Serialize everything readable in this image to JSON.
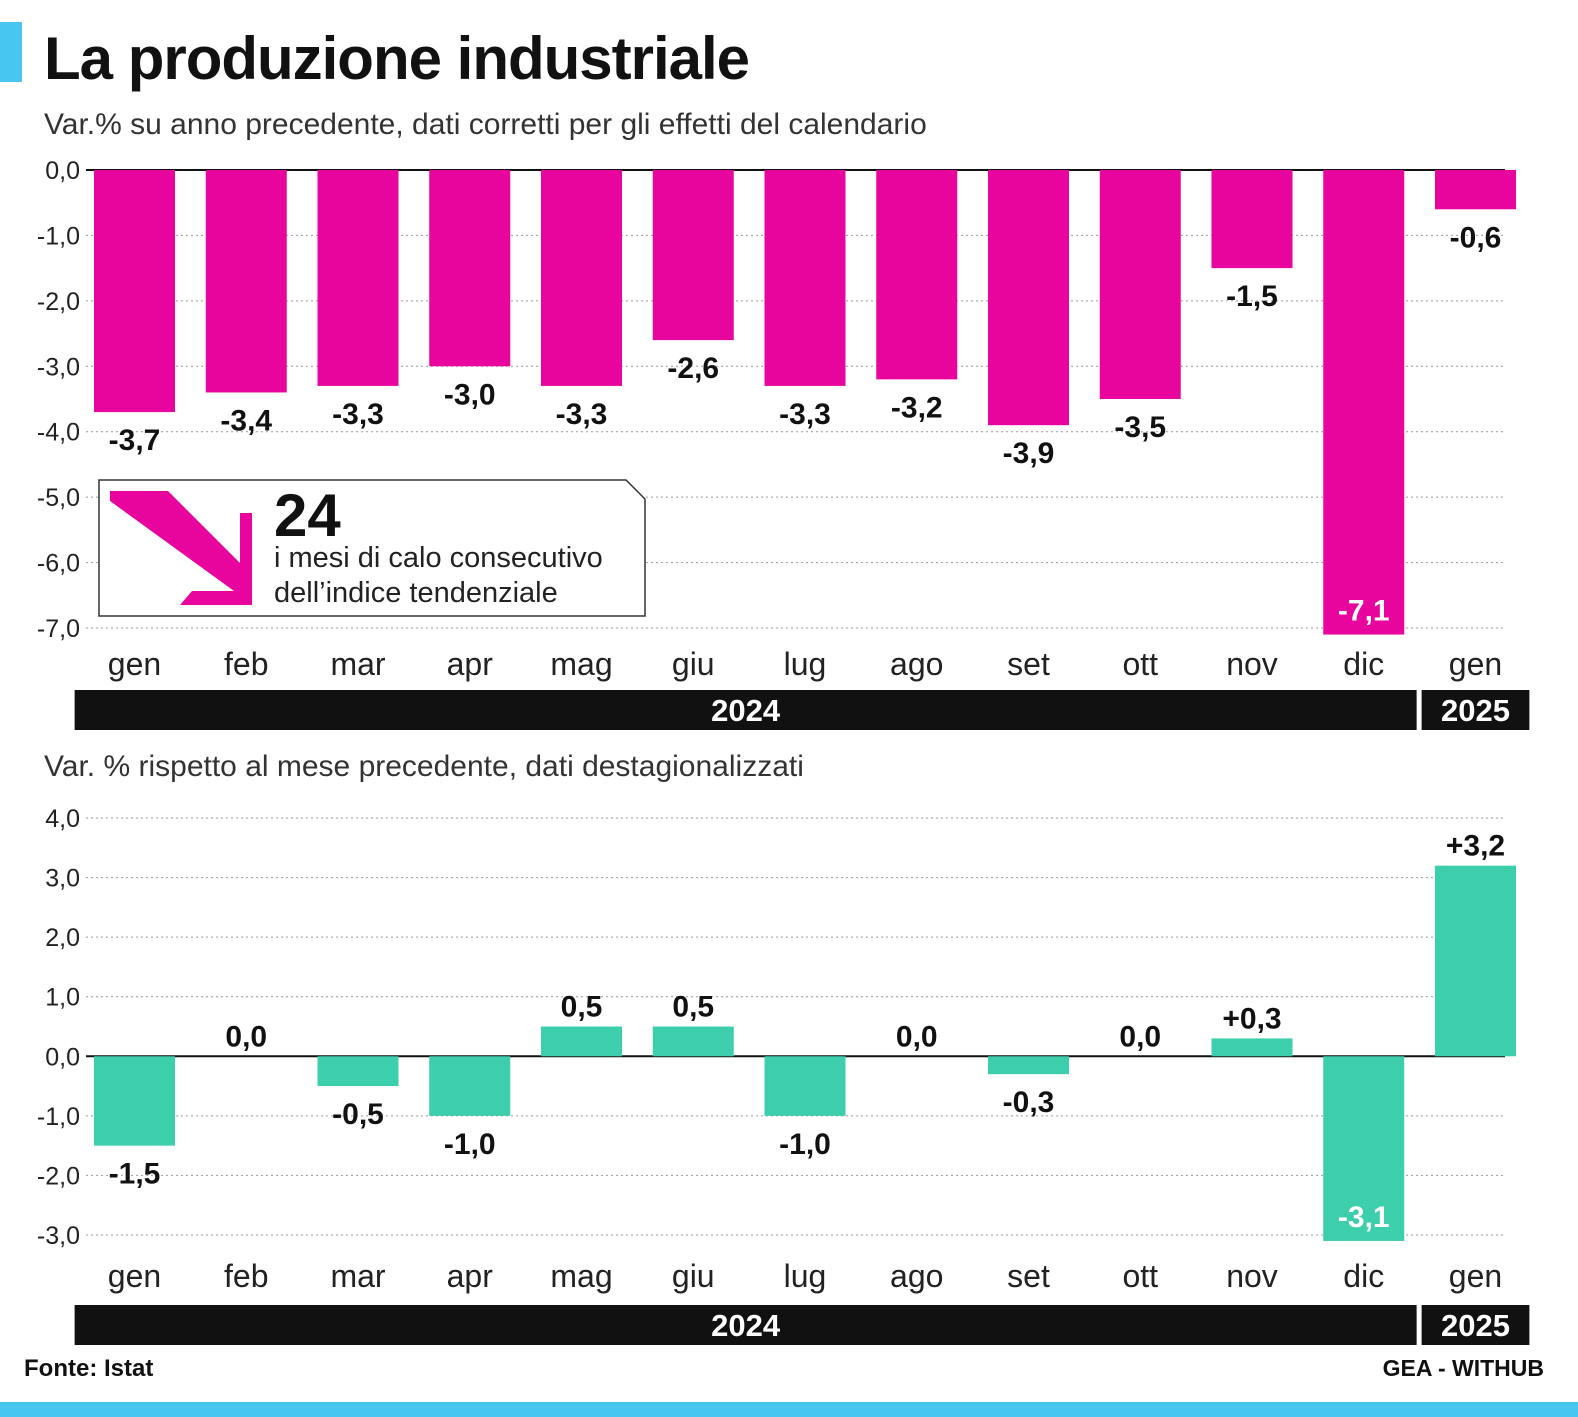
{
  "title": "La produzione industriale",
  "callout": {
    "number": "24",
    "text": "i mesi di calo consecutivo dell’indice tendenziale"
  },
  "source": "Fonte: Istat",
  "credit": "GEA - WITHUB",
  "colors": {
    "magenta": "#e8059e",
    "teal": "#3dcfac",
    "accent": "#47c6ef",
    "band": "#111111"
  },
  "chart_data": [
    {
      "type": "bar",
      "title": "Var.% su anno precedente, dati corretti per gli effetti del calendario",
      "categories": [
        "gen",
        "feb",
        "mar",
        "apr",
        "mag",
        "giu",
        "lug",
        "ago",
        "set",
        "ott",
        "nov",
        "dic",
        "gen"
      ],
      "year_groups": [
        {
          "label": "2024",
          "from": 0,
          "to": 11
        },
        {
          "label": "2025",
          "from": 12,
          "to": 12
        }
      ],
      "values": [
        -3.7,
        -3.4,
        -3.3,
        -3.0,
        -3.3,
        -2.6,
        -3.3,
        -3.2,
        -3.9,
        -3.5,
        -1.5,
        -7.1,
        -0.6
      ],
      "labels": [
        "-3,7",
        "-3,4",
        "-3,3",
        "-3,0",
        "-3,3",
        "-2,6",
        "-3,3",
        "-3,2",
        "-3,9",
        "-3,5",
        "-1,5",
        "-7,1",
        "-0,6"
      ],
      "ylim": [
        -7.0,
        0.0
      ],
      "yticks": [
        "0,0",
        "-1,0",
        "-2,0",
        "-3,0",
        "-4,0",
        "-5,0",
        "-6,0",
        "-7,0"
      ],
      "grid": true,
      "color": "#e8059e"
    },
    {
      "type": "bar",
      "title": "Var. % rispetto al mese precedente, dati destagionalizzati",
      "categories": [
        "gen",
        "feb",
        "mar",
        "apr",
        "mag",
        "giu",
        "lug",
        "ago",
        "set",
        "ott",
        "nov",
        "dic",
        "gen"
      ],
      "year_groups": [
        {
          "label": "2024",
          "from": 0,
          "to": 11
        },
        {
          "label": "2025",
          "from": 12,
          "to": 12
        }
      ],
      "values": [
        -1.5,
        0.0,
        -0.5,
        -1.0,
        0.5,
        0.5,
        -1.0,
        0.0,
        -0.3,
        0.0,
        0.3,
        -3.1,
        3.2
      ],
      "labels": [
        "-1,5",
        "0,0",
        "-0,5",
        "-1,0",
        "0,5",
        "0,5",
        "-1,0",
        "0,0",
        "-0,3",
        "0,0",
        "+0,3",
        "-3,1",
        "+3,2"
      ],
      "ylim": [
        -3.0,
        4.0
      ],
      "yticks": [
        "4,0",
        "3,0",
        "2,0",
        "1,0",
        "0,0",
        "-1,0",
        "-2,0",
        "-3,0"
      ],
      "grid": true,
      "color": "#3dcfac"
    }
  ]
}
